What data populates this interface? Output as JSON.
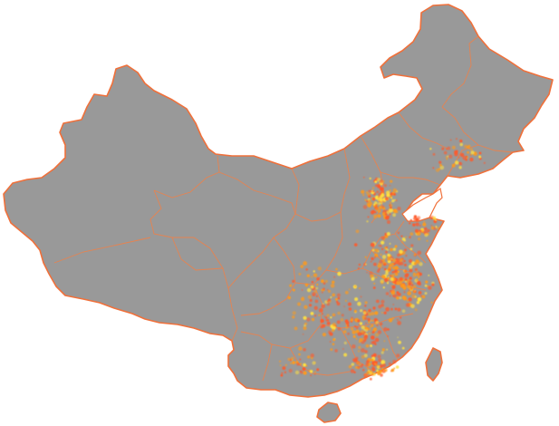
{
  "map": {
    "colors": {
      "background": "#ffffff",
      "land": "#999999",
      "boundary": "#ff7c3a",
      "density_low": "#ff5a2a",
      "density_mid": "#ff9a1a",
      "density_high": "#ffe040"
    }
  }
}
